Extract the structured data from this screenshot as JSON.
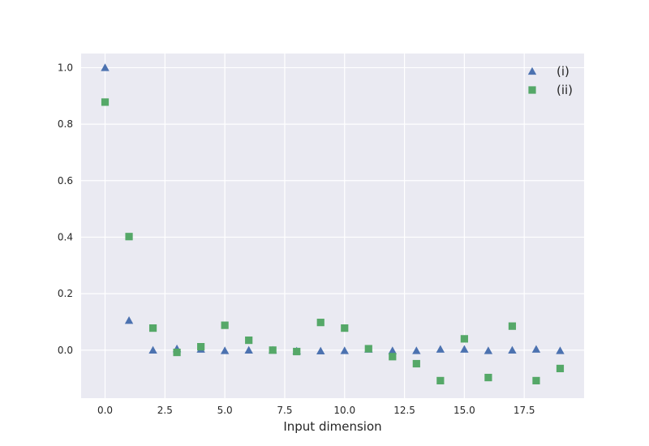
{
  "chart_data": {
    "type": "scatter",
    "title": "",
    "xlabel": "Input dimension",
    "ylabel": "",
    "xlim": [
      -1,
      20
    ],
    "ylim": [
      -0.17,
      1.05
    ],
    "xticks": [
      0.0,
      2.5,
      5.0,
      7.5,
      10.0,
      12.5,
      15.0,
      17.5
    ],
    "xtick_labels": [
      "0.0",
      "2.5",
      "5.0",
      "7.5",
      "10.0",
      "12.5",
      "15.0",
      "17.5"
    ],
    "yticks": [
      0.0,
      0.2,
      0.4,
      0.6,
      0.8,
      1.0
    ],
    "ytick_labels": [
      "0.0",
      "0.2",
      "0.4",
      "0.6",
      "0.8",
      "1.0"
    ],
    "grid": true,
    "legend_position": "top-right",
    "x": [
      0,
      1,
      2,
      3,
      4,
      5,
      6,
      7,
      8,
      9,
      10,
      11,
      12,
      13,
      14,
      15,
      16,
      17,
      18,
      19
    ],
    "series": [
      {
        "name": "(i)",
        "marker": "triangle",
        "color": "#4C72B0",
        "values": [
          1.0,
          0.105,
          0.0,
          0.005,
          0.003,
          -0.002,
          0.0,
          0.0,
          -0.003,
          -0.003,
          -0.002,
          0.003,
          -0.002,
          -0.002,
          0.003,
          0.003,
          -0.002,
          0.0,
          0.003,
          -0.002
        ]
      },
      {
        "name": "(ii)",
        "marker": "square",
        "color": "#55A868",
        "values": [
          0.878,
          0.402,
          0.078,
          -0.008,
          0.012,
          0.088,
          0.035,
          0.0,
          -0.005,
          0.098,
          0.078,
          0.005,
          -0.023,
          -0.048,
          -0.108,
          0.04,
          -0.097,
          0.085,
          -0.108,
          -0.065
        ]
      }
    ]
  },
  "style": {
    "plot_background": "#EAEAF2",
    "grid_color": "#FFFFFF",
    "text_color": "#262626"
  }
}
